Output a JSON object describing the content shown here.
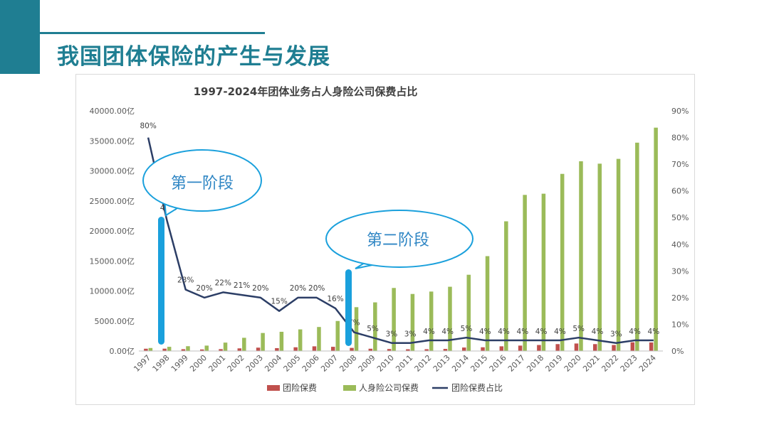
{
  "slide": {
    "title": "我国团体保险的产生与发展"
  },
  "colors": {
    "accent": "#1f7e92",
    "group_bar": "#c0504d",
    "life_bar": "#9bbb59",
    "ratio_line": "#2c3e66",
    "callout": "#1aa0dc"
  },
  "callouts": {
    "stage1": "第一阶段",
    "stage2": "第二阶段"
  },
  "chart_data": {
    "type": "bar",
    "title": "1997-2024年团体业务占人身险公司保费占比",
    "categories": [
      "1997",
      "1998",
      "1999",
      "2000",
      "2001",
      "2002",
      "2003",
      "2004",
      "2005",
      "2006",
      "2007",
      "2008",
      "2009",
      "2010",
      "2011",
      "2012",
      "2013",
      "2014",
      "2015",
      "2016",
      "2017",
      "2018",
      "2019",
      "2020",
      "2021",
      "2022",
      "2023",
      "2024"
    ],
    "y_left": {
      "ylim": [
        0,
        40000
      ],
      "ticks": [
        "0.00亿",
        "5000.00亿",
        "10000.00亿",
        "15000.00亿",
        "20000.00亿",
        "25000.00亿",
        "30000.00亿",
        "35000.00亿",
        "40000.00亿"
      ]
    },
    "y_right": {
      "ylim": [
        0,
        90
      ],
      "ticks": [
        "0%",
        "10%",
        "20%",
        "30%",
        "40%",
        "50%",
        "60%",
        "70%",
        "80%",
        "90%"
      ]
    },
    "series": [
      {
        "name": "团险保费",
        "type": "bar",
        "values": [
          380,
          390,
          300,
          260,
          310,
          440,
          560,
          480,
          620,
          780,
          700,
          520,
          380,
          330,
          290,
          300,
          350,
          580,
          620,
          780,
          900,
          1000,
          1150,
          1250,
          1150,
          1000,
          1450,
          1420
        ]
      },
      {
        "name": "人身险公司保费",
        "type": "bar",
        "values": [
          500,
          700,
          800,
          900,
          1400,
          2200,
          3000,
          3200,
          3600,
          4000,
          5000,
          7300,
          8100,
          10500,
          9500,
          9900,
          10700,
          12700,
          15800,
          21600,
          26000,
          26200,
          29500,
          31600,
          31200,
          32000,
          34700,
          37200
        ]
      },
      {
        "name": "团险保费占比",
        "type": "line",
        "axis": "right",
        "values": [
          80,
          49,
          23,
          20,
          22,
          21,
          20,
          15,
          20,
          20,
          16,
          7,
          5,
          3,
          3,
          4,
          4,
          5,
          4,
          4,
          4,
          4,
          4,
          5,
          4,
          3,
          4,
          4
        ],
        "labels": [
          "80%",
          "49%",
          "23%",
          "20%",
          "22%",
          "21%",
          "20%",
          "15%",
          "20%",
          "20%",
          "16%",
          "7%",
          "5%",
          "3%",
          "3%",
          "4%",
          "4%",
          "5%",
          "4%",
          "4%",
          "4%",
          "4%",
          "4%",
          "5%",
          "4%",
          "3%",
          "4%",
          "4%"
        ]
      }
    ],
    "legend": {
      "position": "bottom",
      "entries": [
        "团险保费",
        "人身险公司保费",
        "团险保费占比"
      ]
    },
    "grid": false
  }
}
